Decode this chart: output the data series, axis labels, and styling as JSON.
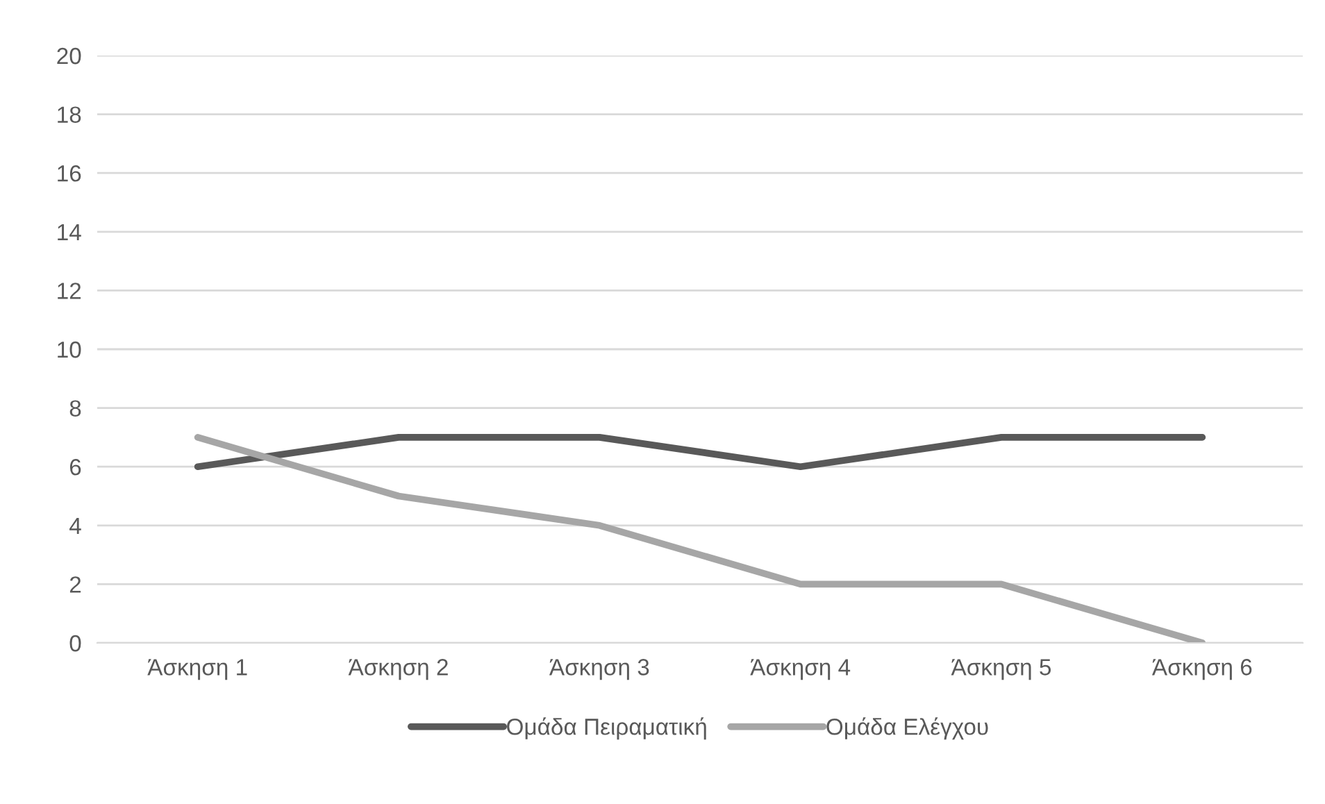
{
  "chart_data": {
    "type": "line",
    "categories": [
      "Άσκηση 1",
      "Άσκηση 2",
      "Άσκηση 3",
      "Άσκηση 4",
      "Άσκηση 5",
      "Άσκηση 6"
    ],
    "series": [
      {
        "name": "Ομάδα Πειραματική",
        "color": "#595959",
        "values": [
          6,
          7,
          7,
          6,
          7,
          7
        ]
      },
      {
        "name": "Ομάδα Ελέγχου",
        "color": "#a6a6a6",
        "values": [
          7,
          5,
          4,
          2,
          2,
          0
        ]
      }
    ],
    "ylim": [
      0,
      20
    ],
    "yticks": [
      0,
      2,
      4,
      6,
      8,
      10,
      12,
      14,
      16,
      18,
      20
    ],
    "grid": "y",
    "legend": "bottom",
    "marker": "none",
    "line_style": "solid"
  }
}
